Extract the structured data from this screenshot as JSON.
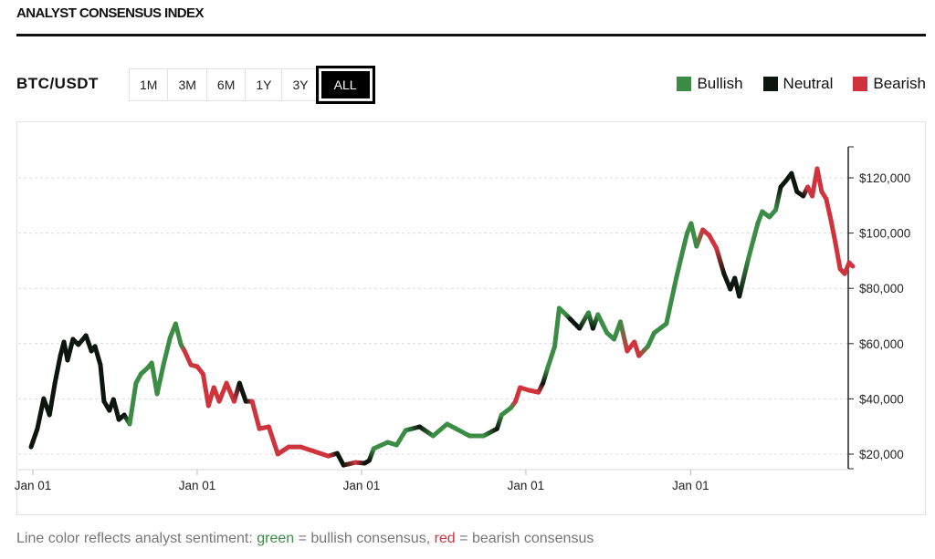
{
  "header": {
    "title": "ANALYST CONSENSUS INDEX"
  },
  "controls": {
    "pair": "BTC/USDT",
    "ranges": [
      "1M",
      "3M",
      "6M",
      "1Y",
      "3Y",
      "ALL"
    ],
    "selected_range": "ALL"
  },
  "legend": [
    {
      "label": "Bullish",
      "key": "bull",
      "color": "#3b8c45"
    },
    {
      "label": "Neutral",
      "key": "neutral",
      "color": "#0d160e"
    },
    {
      "label": "Bearish",
      "key": "bear",
      "color": "#d1333d"
    }
  ],
  "footer": {
    "prefix": "Line color reflects analyst sentiment: ",
    "green_word": "green",
    "mid1": " = bullish consensus, ",
    "red_word": "red",
    "mid2": " = bearish consensus"
  },
  "chart_data": {
    "type": "line",
    "title": "",
    "xlabel": "",
    "ylabel": "",
    "ylim": [
      16000,
      128000
    ],
    "y_ticks": [
      20000,
      40000,
      60000,
      80000,
      100000,
      120000
    ],
    "y_tick_labels": [
      "$20,000",
      "$40,000",
      "$60,000",
      "$80,000",
      "$100,000",
      "$120,000"
    ],
    "x_ticks": [
      "2021-01-01",
      "2022-01-01",
      "2023-01-01",
      "2024-01-01",
      "2025-01-01"
    ],
    "x_tick_labels": [
      "Jan 01",
      "Jan 01",
      "Jan 01",
      "Jan 01",
      "Jan 01"
    ],
    "grid": "horizontal dashed",
    "legend_placement": "top-right",
    "y_axis_side": "right",
    "points": [
      [
        "2020-12-28",
        22600,
        "neutral"
      ],
      [
        "2021-01-11",
        29200,
        "neutral"
      ],
      [
        "2021-01-25",
        40100,
        "neutral"
      ],
      [
        "2021-02-07",
        34200,
        "neutral"
      ],
      [
        "2021-02-19",
        45700,
        "neutral"
      ],
      [
        "2021-03-03",
        55600,
        "neutral"
      ],
      [
        "2021-03-11",
        60600,
        "neutral"
      ],
      [
        "2021-03-19",
        54000,
        "neutral"
      ],
      [
        "2021-03-31",
        61600,
        "neutral"
      ],
      [
        "2021-04-12",
        59600,
        "neutral"
      ],
      [
        "2021-04-29",
        62900,
        "neutral"
      ],
      [
        "2021-05-11",
        57300,
        "neutral"
      ],
      [
        "2021-05-19",
        59000,
        "neutral"
      ],
      [
        "2021-05-31",
        52300,
        "neutral"
      ],
      [
        "2021-06-08",
        39100,
        "neutral"
      ],
      [
        "2021-06-20",
        35800,
        "neutral"
      ],
      [
        "2021-06-29",
        39800,
        "neutral"
      ],
      [
        "2021-07-11",
        32500,
        "neutral"
      ],
      [
        "2021-07-23",
        34200,
        "neutral"
      ],
      [
        "2021-08-04",
        30900,
        "bull"
      ],
      [
        "2021-08-18",
        45700,
        "bull"
      ],
      [
        "2021-08-29",
        49000,
        "bull"
      ],
      [
        "2021-09-14",
        51400,
        "bull"
      ],
      [
        "2021-09-22",
        53000,
        "bull"
      ],
      [
        "2021-10-04",
        41800,
        "bull"
      ],
      [
        "2021-10-18",
        52300,
        "bull"
      ],
      [
        "2021-11-02",
        62200,
        "bull"
      ],
      [
        "2021-11-14",
        67200,
        "bull"
      ],
      [
        "2021-11-26",
        59600,
        "bull"
      ],
      [
        "2021-12-04",
        57300,
        "bear"
      ],
      [
        "2021-12-18",
        52300,
        "bear"
      ],
      [
        "2022-01-01",
        51700,
        "bear"
      ],
      [
        "2022-01-14",
        49000,
        "bear"
      ],
      [
        "2022-01-26",
        37500,
        "bear"
      ],
      [
        "2022-02-07",
        44100,
        "bear"
      ],
      [
        "2022-02-19",
        39100,
        "bear"
      ],
      [
        "2022-03-07",
        45700,
        "bear"
      ],
      [
        "2022-03-24",
        39100,
        "bear"
      ],
      [
        "2022-04-05",
        45700,
        "neutral"
      ],
      [
        "2022-04-19",
        39100,
        "neutral"
      ],
      [
        "2022-05-03",
        39100,
        "bear"
      ],
      [
        "2022-05-19",
        29200,
        "bear"
      ],
      [
        "2022-06-09",
        29900,
        "bear"
      ],
      [
        "2022-06-29",
        20000,
        "bear"
      ],
      [
        "2022-07-23",
        22600,
        "bear"
      ],
      [
        "2022-08-19",
        22600,
        "bear"
      ],
      [
        "2022-09-18",
        21000,
        "bear"
      ],
      [
        "2022-10-19",
        19300,
        "bear"
      ],
      [
        "2022-11-08",
        20300,
        "neutral"
      ],
      [
        "2022-11-22",
        16000,
        "neutral"
      ],
      [
        "2022-12-19",
        17000,
        "bear"
      ],
      [
        "2023-01-08",
        16700,
        "neutral"
      ],
      [
        "2023-01-18",
        17700,
        "neutral"
      ],
      [
        "2023-01-28",
        22000,
        "bull"
      ],
      [
        "2023-02-28",
        24300,
        "bull"
      ],
      [
        "2023-03-20",
        23300,
        "bull"
      ],
      [
        "2023-04-09",
        28600,
        "bull"
      ],
      [
        "2023-05-10",
        29900,
        "neutral"
      ],
      [
        "2023-06-09",
        26600,
        "bull"
      ],
      [
        "2023-07-10",
        30900,
        "bull"
      ],
      [
        "2023-07-30",
        29200,
        "bull"
      ],
      [
        "2023-08-29",
        26600,
        "bull"
      ],
      [
        "2023-09-29",
        26600,
        "bull"
      ],
      [
        "2023-10-29",
        29200,
        "neutral"
      ],
      [
        "2023-11-08",
        34200,
        "bull"
      ],
      [
        "2023-11-29",
        36800,
        "bull"
      ],
      [
        "2023-12-09",
        39100,
        "bear"
      ],
      [
        "2023-12-19",
        44100,
        "bear"
      ],
      [
        "2024-01-08",
        43100,
        "bear"
      ],
      [
        "2024-01-29",
        42400,
        "bear"
      ],
      [
        "2024-02-08",
        45700,
        "neutral"
      ],
      [
        "2024-02-18",
        51000,
        "bull"
      ],
      [
        "2024-03-05",
        59000,
        "bull"
      ],
      [
        "2024-03-15",
        72800,
        "bull"
      ],
      [
        "2024-03-30",
        70500,
        "bull"
      ],
      [
        "2024-04-09",
        68800,
        "neutral"
      ],
      [
        "2024-04-29",
        65500,
        "neutral"
      ],
      [
        "2024-05-19",
        71200,
        "bull"
      ],
      [
        "2024-05-29",
        65500,
        "neutral"
      ],
      [
        "2024-06-09",
        70500,
        "bull"
      ],
      [
        "2024-06-29",
        63900,
        "bull"
      ],
      [
        "2024-07-15",
        61600,
        "bull"
      ],
      [
        "2024-07-29",
        67900,
        "bull"
      ],
      [
        "2024-08-13",
        57300,
        "bear"
      ],
      [
        "2024-08-29",
        60600,
        "bear"
      ],
      [
        "2024-09-08",
        55600,
        "bear"
      ],
      [
        "2024-09-28",
        59000,
        "bull"
      ],
      [
        "2024-10-12",
        63900,
        "bull"
      ],
      [
        "2024-11-08",
        67200,
        "bull"
      ],
      [
        "2024-11-30",
        83700,
        "bull"
      ],
      [
        "2024-12-12",
        91900,
        "bull"
      ],
      [
        "2024-12-24",
        99900,
        "bull"
      ],
      [
        "2025-01-02",
        103500,
        "bull"
      ],
      [
        "2025-01-14",
        95200,
        "bull"
      ],
      [
        "2025-01-28",
        101200,
        "bear"
      ],
      [
        "2025-02-11",
        99200,
        "bear"
      ],
      [
        "2025-02-27",
        94600,
        "bear"
      ],
      [
        "2025-03-16",
        85300,
        "neutral"
      ],
      [
        "2025-03-30",
        79700,
        "neutral"
      ],
      [
        "2025-04-09",
        83700,
        "neutral"
      ],
      [
        "2025-04-19",
        77100,
        "neutral"
      ],
      [
        "2025-05-10",
        91300,
        "bull"
      ],
      [
        "2025-05-30",
        103500,
        "bull"
      ],
      [
        "2025-06-09",
        107800,
        "bull"
      ],
      [
        "2025-06-25",
        105800,
        "bull"
      ],
      [
        "2025-07-09",
        108400,
        "bull"
      ],
      [
        "2025-07-20",
        116700,
        "neutral"
      ],
      [
        "2025-08-01",
        119000,
        "neutral"
      ],
      [
        "2025-08-13",
        121600,
        "neutral"
      ],
      [
        "2025-08-25",
        115000,
        "neutral"
      ],
      [
        "2025-09-08",
        113400,
        "neutral"
      ],
      [
        "2025-09-18",
        116700,
        "bear"
      ],
      [
        "2025-09-28",
        113400,
        "bear"
      ],
      [
        "2025-10-09",
        123300,
        "bear"
      ],
      [
        "2025-10-19",
        115000,
        "bear"
      ],
      [
        "2025-10-29",
        112400,
        "bear"
      ],
      [
        "2025-11-08",
        105100,
        "bear"
      ],
      [
        "2025-11-18",
        96900,
        "bear"
      ],
      [
        "2025-11-29",
        87000,
        "bear"
      ],
      [
        "2025-12-09",
        85300,
        "bear"
      ],
      [
        "2025-12-19",
        89300,
        "bear"
      ],
      [
        "2025-12-27",
        88000,
        "bear"
      ]
    ]
  }
}
